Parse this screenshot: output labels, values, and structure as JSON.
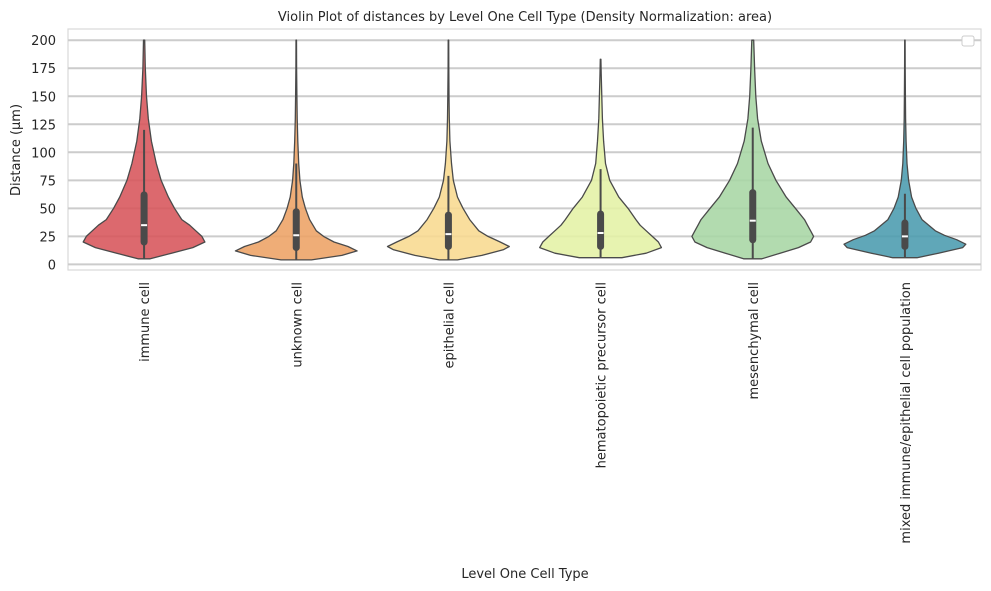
{
  "chart_data": {
    "type": "violin",
    "title": "Violin Plot of distances by Level One Cell Type (Density Normalization: area)",
    "xlabel": "Level One Cell Type",
    "ylabel": "Distance (µm)",
    "ylim": [
      -5,
      210
    ],
    "yticks": [
      0,
      25,
      50,
      75,
      100,
      125,
      150,
      175,
      200
    ],
    "grid": true,
    "legend": {
      "placement": "top-right",
      "entries": []
    },
    "categories": [
      "immune cell",
      "unknown cell",
      "epithelial cell",
      "hematopoietic precursor cell",
      "mesenchymal cell",
      "mixed immune/epithelial cell population"
    ],
    "colors": [
      "#d7545a",
      "#eda264",
      "#f8d98f",
      "#e4f1a5",
      "#a7d6a4",
      "#4a9bae"
    ],
    "series": [
      {
        "name": "immune cell",
        "min": 5,
        "max": 200,
        "q1": 20,
        "median": 35,
        "q3": 62,
        "whisker_low": 5,
        "whisker_high": 120,
        "density": [
          [
            5,
            0.1
          ],
          [
            10,
            0.45
          ],
          [
            15,
            0.8
          ],
          [
            20,
            1.0
          ],
          [
            25,
            0.95
          ],
          [
            30,
            0.85
          ],
          [
            35,
            0.75
          ],
          [
            40,
            0.62
          ],
          [
            50,
            0.5
          ],
          [
            60,
            0.4
          ],
          [
            75,
            0.28
          ],
          [
            90,
            0.2
          ],
          [
            110,
            0.12
          ],
          [
            130,
            0.07
          ],
          [
            150,
            0.04
          ],
          [
            175,
            0.02
          ],
          [
            200,
            0.01
          ]
        ]
      },
      {
        "name": "unknown cell",
        "min": 4,
        "max": 200,
        "q1": 15,
        "median": 26,
        "q3": 47,
        "whisker_low": 4,
        "whisker_high": 90,
        "density": [
          [
            4,
            0.25
          ],
          [
            8,
            0.75
          ],
          [
            12,
            1.0
          ],
          [
            16,
            0.85
          ],
          [
            20,
            0.62
          ],
          [
            25,
            0.45
          ],
          [
            30,
            0.33
          ],
          [
            40,
            0.22
          ],
          [
            50,
            0.15
          ],
          [
            60,
            0.1
          ],
          [
            75,
            0.06
          ],
          [
            90,
            0.04
          ],
          [
            110,
            0.025
          ],
          [
            130,
            0.015
          ],
          [
            150,
            0.01
          ],
          [
            175,
            0.006
          ],
          [
            200,
            0.004
          ]
        ]
      },
      {
        "name": "epithelial cell",
        "min": 4,
        "max": 200,
        "q1": 16,
        "median": 27,
        "q3": 44,
        "whisker_low": 4,
        "whisker_high": 79,
        "density": [
          [
            4,
            0.15
          ],
          [
            8,
            0.55
          ],
          [
            13,
            0.9
          ],
          [
            16,
            1.0
          ],
          [
            20,
            0.85
          ],
          [
            25,
            0.65
          ],
          [
            30,
            0.5
          ],
          [
            40,
            0.35
          ],
          [
            50,
            0.24
          ],
          [
            60,
            0.15
          ],
          [
            75,
            0.08
          ],
          [
            90,
            0.05
          ],
          [
            110,
            0.025
          ],
          [
            130,
            0.015
          ],
          [
            150,
            0.01
          ],
          [
            175,
            0.006
          ],
          [
            200,
            0.004
          ]
        ]
      },
      {
        "name": "hematopoietic precursor cell",
        "min": 6,
        "max": 183,
        "q1": 16,
        "median": 28,
        "q3": 45,
        "whisker_low": 6,
        "whisker_high": 85,
        "density": [
          [
            6,
            0.35
          ],
          [
            10,
            0.75
          ],
          [
            15,
            1.0
          ],
          [
            20,
            0.95
          ],
          [
            25,
            0.85
          ],
          [
            30,
            0.75
          ],
          [
            35,
            0.65
          ],
          [
            40,
            0.58
          ],
          [
            50,
            0.45
          ],
          [
            60,
            0.3
          ],
          [
            75,
            0.15
          ],
          [
            90,
            0.08
          ],
          [
            110,
            0.05
          ],
          [
            130,
            0.03
          ],
          [
            150,
            0.02
          ],
          [
            170,
            0.01
          ],
          [
            183,
            0.005
          ]
        ]
      },
      {
        "name": "mesenchymal cell",
        "min": 5,
        "max": 200,
        "q1": 22,
        "median": 39,
        "q3": 64,
        "whisker_low": 5,
        "whisker_high": 122,
        "density": [
          [
            5,
            0.15
          ],
          [
            10,
            0.45
          ],
          [
            15,
            0.75
          ],
          [
            20,
            0.95
          ],
          [
            25,
            1.0
          ],
          [
            30,
            0.95
          ],
          [
            35,
            0.9
          ],
          [
            40,
            0.85
          ],
          [
            50,
            0.7
          ],
          [
            60,
            0.55
          ],
          [
            75,
            0.38
          ],
          [
            90,
            0.25
          ],
          [
            110,
            0.14
          ],
          [
            130,
            0.08
          ],
          [
            150,
            0.05
          ],
          [
            175,
            0.03
          ],
          [
            200,
            0.015
          ]
        ]
      },
      {
        "name": "mixed immune/epithelial cell population",
        "min": 6,
        "max": 200,
        "q1": 16,
        "median": 25,
        "q3": 37,
        "whisker_low": 6,
        "whisker_high": 63,
        "density": [
          [
            6,
            0.2
          ],
          [
            10,
            0.55
          ],
          [
            15,
            0.95
          ],
          [
            18,
            1.0
          ],
          [
            22,
            0.85
          ],
          [
            26,
            0.65
          ],
          [
            30,
            0.5
          ],
          [
            40,
            0.28
          ],
          [
            50,
            0.18
          ],
          [
            60,
            0.11
          ],
          [
            75,
            0.06
          ],
          [
            90,
            0.035
          ],
          [
            110,
            0.02
          ],
          [
            130,
            0.012
          ],
          [
            150,
            0.008
          ],
          [
            175,
            0.005
          ],
          [
            200,
            0.003
          ]
        ]
      }
    ]
  }
}
